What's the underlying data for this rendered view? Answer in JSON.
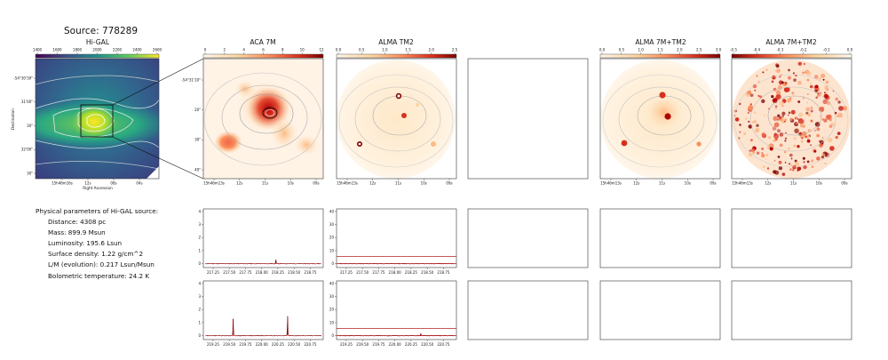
{
  "source_title": "Source: 778289",
  "panels": {
    "higal": {
      "title": "Hi-GAL",
      "colorbar_ticks": [
        "1400",
        "1600",
        "1800",
        "2000",
        "2200",
        "2400",
        "2600"
      ],
      "ra_ticks": [
        "15h46m16s",
        "12s",
        "08s",
        "04s"
      ],
      "dec_ticks": [
        "-54°30'30\"",
        "31'00\"",
        "30\"",
        "32'00\"",
        "30\""
      ],
      "xlabel": "Right Ascension",
      "ylabel": "Declination"
    },
    "aca7m": {
      "title": "ACA 7M",
      "colorbar_ticks": [
        "0",
        "2",
        "4",
        "6",
        "8",
        "10",
        "12"
      ],
      "ra_ticks": [
        "15h46m13s",
        "12s",
        "11s",
        "10s",
        "09s"
      ],
      "dec_ticks": [
        "-54°31'10\"",
        "20\"",
        "30\"",
        "40\""
      ]
    },
    "almatm2": {
      "title": "ALMA TM2",
      "colorbar_ticks": [
        "0.0",
        "0.5",
        "1.0",
        "1.5",
        "2.0",
        "2.5"
      ],
      "ra_ticks": [
        "15h46m13s",
        "12s",
        "11s",
        "10s",
        "09s"
      ]
    },
    "alma7mtm2": {
      "title": "ALMA 7M+TM2",
      "colorbar_ticks": [
        "0.0",
        "0.5",
        "1.0",
        "1.5",
        "2.0",
        "2.5",
        "3.0"
      ],
      "ra_ticks": [
        "15h46m13s",
        "12s",
        "11s",
        "10s",
        "09s"
      ]
    },
    "alma7mtm2_res": {
      "title": "ALMA 7M+TM2",
      "colorbar_ticks": [
        "-0.5",
        "-0.4",
        "-0.3",
        "-0.2",
        "-0.1",
        "0.0"
      ],
      "ra_ticks": [
        "15h46m13s",
        "12s",
        "11s",
        "10s",
        "09s"
      ]
    }
  },
  "physical_parameters": {
    "heading": "Physical parameters of Hi-GAL source:",
    "lines": [
      "Distance: 4308 pc",
      "Mass: 899.9 Msun",
      "Luminosity: 195.6 Lsun",
      "Surface density: 1.22 g/cm^2",
      "L/M (evolution): 0.217 Lsun/Msun",
      "Bolometric temperature: 24.2 K"
    ]
  },
  "colors": {
    "spectrum_line": "#8b0000",
    "hline": "#b22222",
    "contour": "#9a9a9a",
    "frame": "#555555"
  },
  "chart_data": [
    {
      "type": "line",
      "panel": "ACA 7M spectrum, upper band",
      "xlim": [
        217.1,
        218.95
      ],
      "x_ticks": [
        "217.25",
        "217.50",
        "217.75",
        "218.00",
        "218.25",
        "218.50",
        "218.75"
      ],
      "ylim": [
        -0.3,
        4.2
      ],
      "y_ticks": [
        "0",
        "1",
        "2",
        "3",
        "4"
      ],
      "baseline": 0.0,
      "features": [
        {
          "x": 218.22,
          "y": 0.32
        }
      ]
    },
    {
      "type": "line",
      "panel": "ALMA TM2 spectrum, upper band",
      "xlim": [
        217.1,
        218.95
      ],
      "x_ticks": [
        "217.25",
        "217.50",
        "217.75",
        "218.00",
        "218.25",
        "218.50",
        "218.75"
      ],
      "ylim": [
        -3,
        42
      ],
      "y_ticks": [
        "0",
        "10",
        "20",
        "30",
        "40"
      ],
      "baseline": 0.0,
      "hlines": [
        0.0,
        5.5
      ]
    },
    {
      "type": "line",
      "panel": "ACA 7M spectrum, lower band",
      "xlim": [
        219.1,
        220.95
      ],
      "x_ticks": [
        "219.25",
        "219.50",
        "219.75",
        "220.00",
        "220.25",
        "220.50",
        "220.75"
      ],
      "ylim": [
        -0.3,
        4.2
      ],
      "y_ticks": [
        "0",
        "1",
        "2",
        "3",
        "4"
      ],
      "baseline": 0.0,
      "features": [
        {
          "x": 219.56,
          "y": 1.3
        },
        {
          "x": 220.4,
          "y": 1.5
        }
      ]
    },
    {
      "type": "line",
      "panel": "ALMA TM2 spectrum, lower band",
      "xlim": [
        219.1,
        220.95
      ],
      "x_ticks": [
        "219.25",
        "219.50",
        "219.75",
        "220.00",
        "220.25",
        "220.50",
        "220.75"
      ],
      "ylim": [
        -3,
        42
      ],
      "y_ticks": [
        "0",
        "10",
        "20",
        "30",
        "40"
      ],
      "baseline": 0.0,
      "hlines": [
        0.0,
        5.5
      ],
      "features": [
        {
          "x": 220.4,
          "y": 1.5
        }
      ]
    }
  ]
}
